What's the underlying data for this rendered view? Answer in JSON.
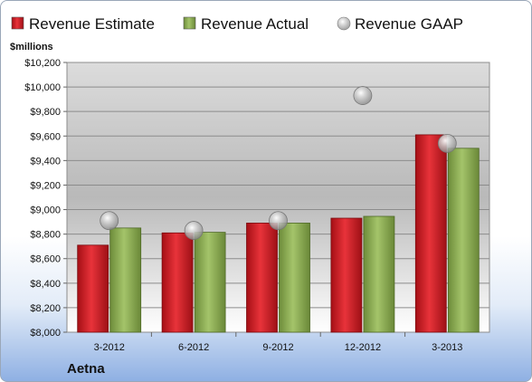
{
  "chart_data": {
    "type": "bar",
    "categories": [
      "3-2012",
      "6-2012",
      "9-2012",
      "12-2012",
      "3-2013"
    ],
    "series": [
      {
        "name": "Revenue Estimate",
        "values": [
          8710,
          8810,
          8890,
          8930,
          9610
        ],
        "color": "#d22027"
      },
      {
        "name": "Revenue Actual",
        "values": [
          8850,
          8815,
          8890,
          8945,
          9500
        ],
        "color": "#8db054"
      },
      {
        "name": "Revenue GAAP",
        "values": [
          8910,
          8830,
          8910,
          9930,
          9540
        ],
        "color": "#b8b8b8",
        "marker": "circle"
      }
    ],
    "ylabel": "$millions",
    "ylim": [
      8000,
      10200
    ],
    "yticks": [
      8000,
      8200,
      8400,
      8600,
      8800,
      9000,
      9200,
      9400,
      9600,
      9800,
      10000,
      10200
    ],
    "ytick_labels": [
      "$8,000",
      "$8,200",
      "$8,400",
      "$8,600",
      "$8,800",
      "$9,000",
      "$9,200",
      "$9,400",
      "$9,600",
      "$9,800",
      "$10,000",
      "$10,200"
    ],
    "grid": true,
    "legend": "top"
  },
  "company": "Aetna"
}
